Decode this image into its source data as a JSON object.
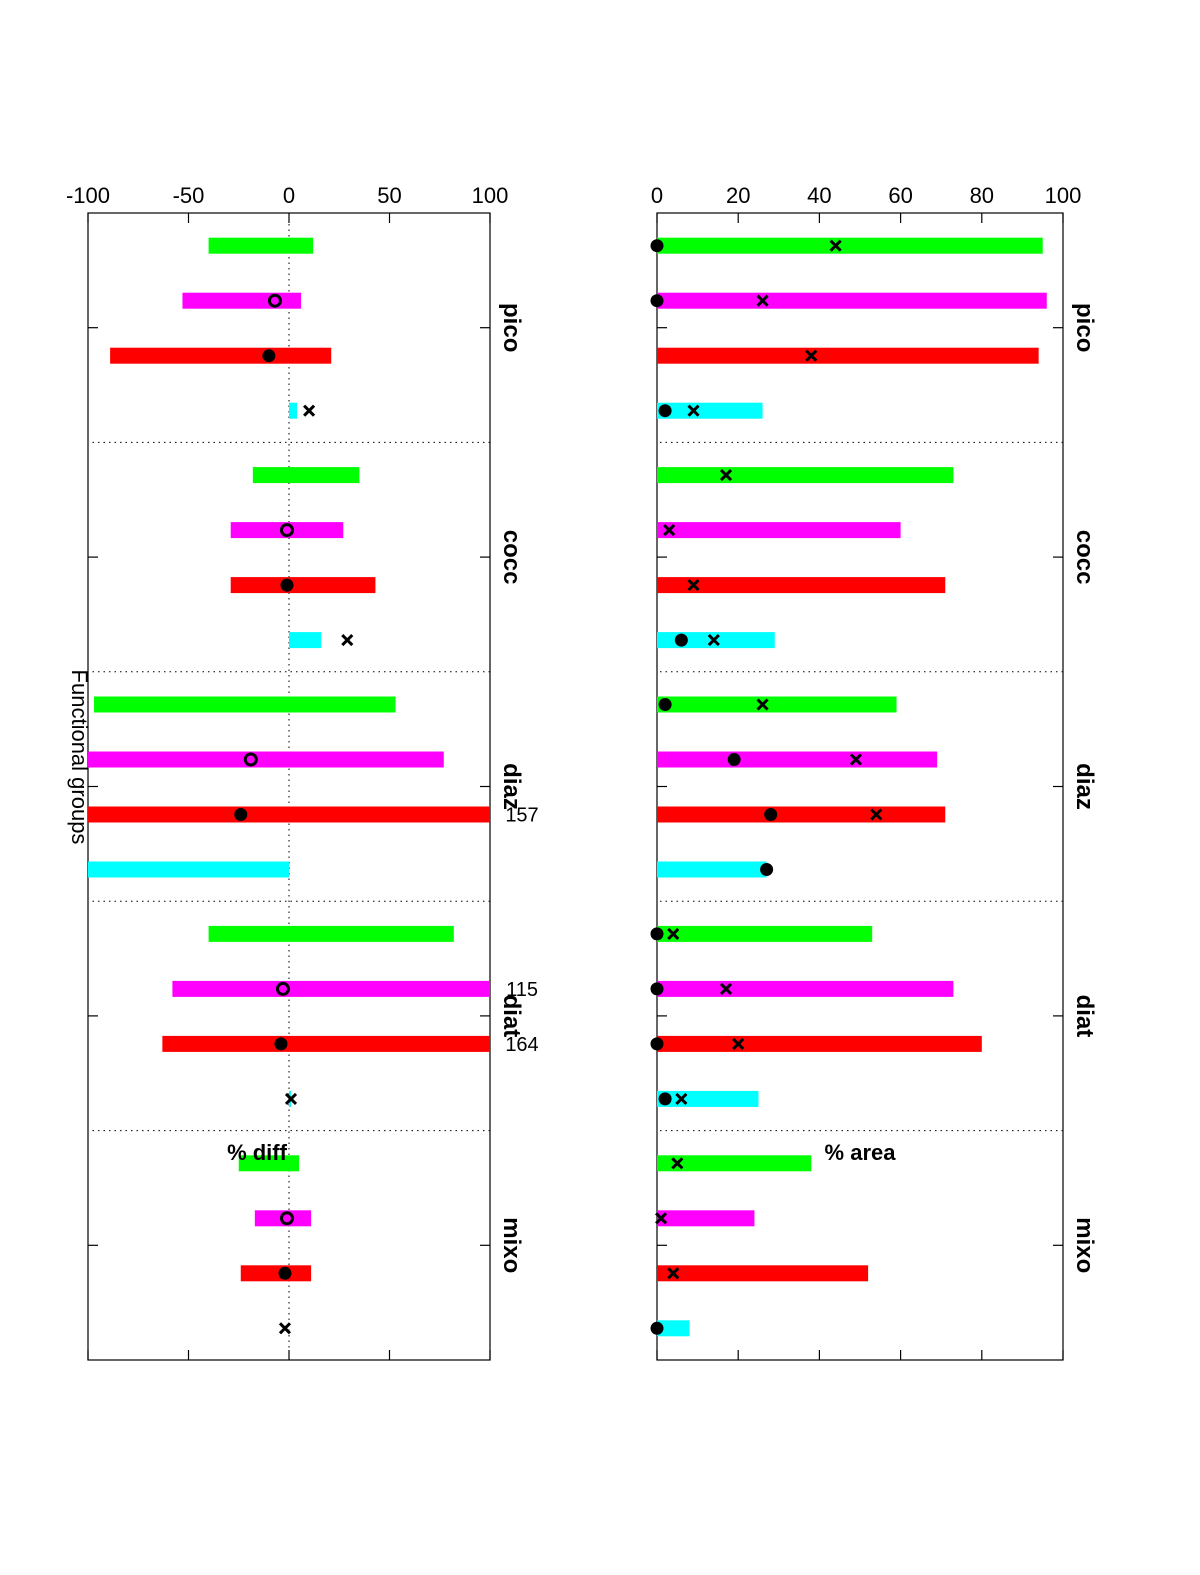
{
  "title": "Functional groups",
  "categories": [
    "pico",
    "cocc",
    "diaz",
    "diat",
    "mixo"
  ],
  "chart_data": [
    {
      "type": "bar",
      "panel": "top",
      "ylabel": "% diff",
      "ylim": [
        -100,
        100
      ],
      "yticks": [
        100,
        50,
        0,
        -50,
        -100
      ],
      "reference_line": 0,
      "series_colors": [
        "#00ff00",
        "#ff00ff",
        "#ff0000",
        "#00ffff"
      ],
      "groups": [
        {
          "category": "pico",
          "bars": [
            {
              "series": 0,
              "range": [
                12,
                -40
              ]
            },
            {
              "series": 1,
              "range": [
                6,
                -53
              ],
              "marker": "o",
              "marker_value": -7
            },
            {
              "series": 2,
              "range": [
                21,
                -89
              ],
              "marker": "dot",
              "marker_value": -10
            },
            {
              "series": 3,
              "range": [
                4,
                0
              ],
              "marker": "x",
              "marker_value": 10
            }
          ]
        },
        {
          "category": "cocc",
          "bars": [
            {
              "series": 0,
              "range": [
                35,
                -18
              ]
            },
            {
              "series": 1,
              "range": [
                27,
                -29
              ],
              "marker": "o",
              "marker_value": -1
            },
            {
              "series": 2,
              "range": [
                43,
                -29
              ],
              "marker": "dot",
              "marker_value": -1
            },
            {
              "series": 3,
              "range": [
                16,
                0
              ],
              "marker": "x",
              "marker_value": 29
            }
          ]
        },
        {
          "category": "diaz",
          "bars": [
            {
              "series": 0,
              "range": [
                53,
                -97
              ]
            },
            {
              "series": 1,
              "range": [
                77,
                -100
              ],
              "marker": "o",
              "marker_value": -19
            },
            {
              "series": 2,
              "range": [
                100,
                -100
              ],
              "marker": "dot",
              "marker_value": -24
            },
            {
              "series": 3,
              "range": [
                0,
                -100
              ]
            }
          ]
        },
        {
          "category": "diat",
          "bars": [
            {
              "series": 0,
              "range": [
                82,
                -40
              ]
            },
            {
              "series": 1,
              "range": [
                100,
                -58
              ],
              "marker": "o",
              "marker_value": -3
            },
            {
              "series": 2,
              "range": [
                100,
                -63
              ],
              "marker": "dot",
              "marker_value": -4
            },
            {
              "series": 3,
              "range": [
                1,
                0
              ],
              "marker": "x",
              "marker_value": 1
            }
          ]
        },
        {
          "category": "mixo",
          "bars": [
            {
              "series": 0,
              "range": [
                5,
                -25
              ]
            },
            {
              "series": 1,
              "range": [
                11,
                -17
              ],
              "marker": "o",
              "marker_value": -1
            },
            {
              "series": 2,
              "range": [
                11,
                -24
              ],
              "marker": "dot",
              "marker_value": -2
            },
            {
              "series": 3,
              "range": [
                0,
                0
              ],
              "marker": "x",
              "marker_value": -2
            }
          ]
        }
      ],
      "annotations": [
        {
          "text": "157",
          "category": "diaz",
          "series": 2
        },
        {
          "text": "115",
          "category": "diat",
          "series": 1
        },
        {
          "text": "164",
          "category": "diat",
          "series": 2
        }
      ]
    },
    {
      "type": "bar",
      "panel": "bottom",
      "ylabel": "% area",
      "ylim": [
        0,
        100
      ],
      "yticks": [
        100,
        80,
        60,
        40,
        20,
        0
      ],
      "series_colors": [
        "#00ff00",
        "#ff00ff",
        "#ff0000",
        "#00ffff"
      ],
      "groups": [
        {
          "category": "pico",
          "bars": [
            {
              "series": 0,
              "value": 95,
              "x_marker": 44,
              "dot_marker": 0
            },
            {
              "series": 1,
              "value": 96,
              "x_marker": 26,
              "dot_marker": 0
            },
            {
              "series": 2,
              "value": 94,
              "x_marker": 38
            },
            {
              "series": 3,
              "value": 26,
              "x_marker": 9,
              "dot_marker": 2
            }
          ]
        },
        {
          "category": "cocc",
          "bars": [
            {
              "series": 0,
              "value": 73,
              "x_marker": 17
            },
            {
              "series": 1,
              "value": 60,
              "x_marker": 3
            },
            {
              "series": 2,
              "value": 71,
              "x_marker": 9
            },
            {
              "series": 3,
              "value": 29,
              "x_marker": 14,
              "dot_marker": 6
            }
          ]
        },
        {
          "category": "diaz",
          "bars": [
            {
              "series": 0,
              "value": 59,
              "x_marker": 26,
              "dot_marker": 2
            },
            {
              "series": 1,
              "value": 69,
              "x_marker": 49,
              "dot_marker": 19
            },
            {
              "series": 2,
              "value": 71,
              "x_marker": 54,
              "dot_marker": 28
            },
            {
              "series": 3,
              "value": 27,
              "dot_marker": 27
            }
          ]
        },
        {
          "category": "diat",
          "bars": [
            {
              "series": 0,
              "value": 53,
              "x_marker": 4,
              "dot_marker": 0
            },
            {
              "series": 1,
              "value": 73,
              "x_marker": 17,
              "dot_marker": 0
            },
            {
              "series": 2,
              "value": 80,
              "x_marker": 20,
              "dot_marker": 0
            },
            {
              "series": 3,
              "value": 25,
              "x_marker": 6,
              "dot_marker": 2
            }
          ]
        },
        {
          "category": "mixo",
          "bars": [
            {
              "series": 0,
              "value": 38,
              "x_marker": 5
            },
            {
              "series": 1,
              "value": 24,
              "x_marker": 1
            },
            {
              "series": 2,
              "value": 52,
              "x_marker": 4
            },
            {
              "series": 3,
              "value": 8,
              "dot_marker": 0
            }
          ]
        }
      ]
    }
  ]
}
